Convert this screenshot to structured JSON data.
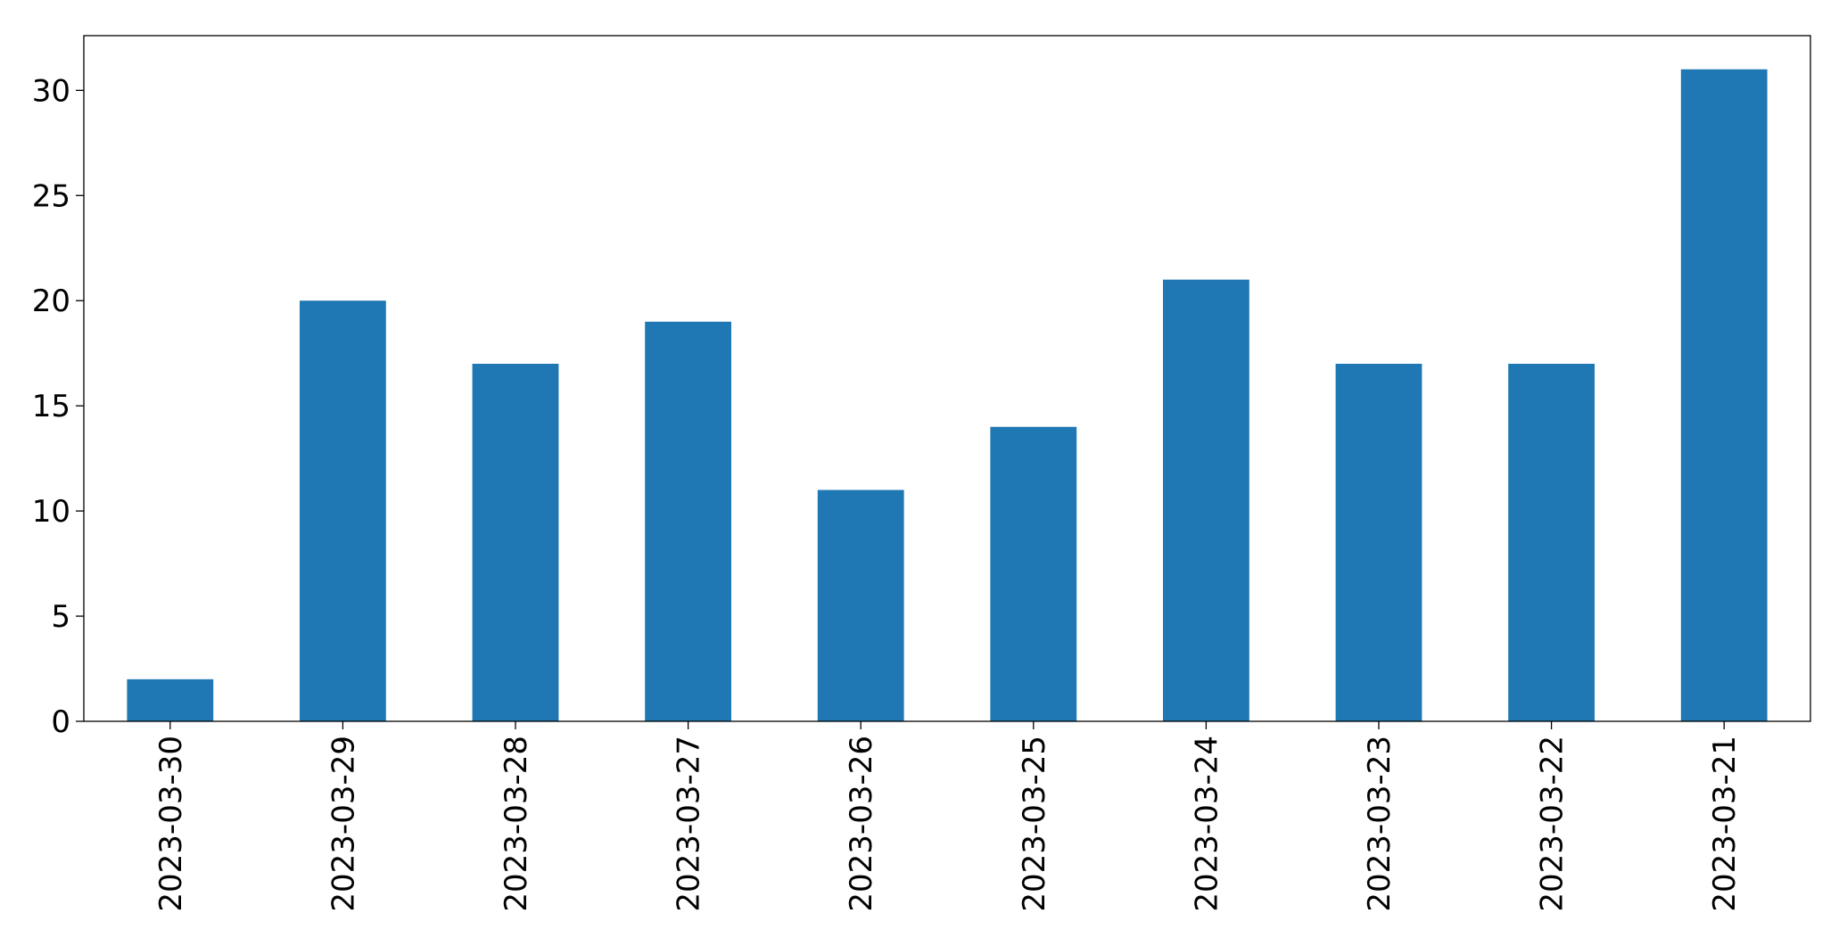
{
  "chart_data": {
    "type": "bar",
    "categories": [
      "2023-03-30",
      "2023-03-29",
      "2023-03-28",
      "2023-03-27",
      "2023-03-26",
      "2023-03-25",
      "2023-03-24",
      "2023-03-23",
      "2023-03-22",
      "2023-03-21"
    ],
    "values": [
      2,
      20,
      17,
      19,
      11,
      14,
      21,
      17,
      17,
      31
    ],
    "color": "#1f77b4",
    "ylim": [
      0,
      32.6
    ],
    "yticks": [
      0,
      5,
      10,
      15,
      20,
      25,
      30
    ],
    "grid": false
  }
}
